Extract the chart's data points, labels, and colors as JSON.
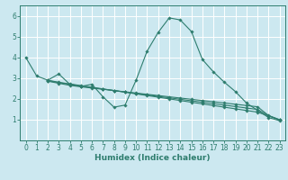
{
  "title": "",
  "xlabel": "Humidex (Indice chaleur)",
  "bg_color": "#cce8f0",
  "grid_color": "#ffffff",
  "line_color": "#2e7d6e",
  "xlim": [
    -0.5,
    23.5
  ],
  "ylim": [
    0,
    6.5
  ],
  "xticks": [
    0,
    1,
    2,
    3,
    4,
    5,
    6,
    7,
    8,
    9,
    10,
    11,
    12,
    13,
    14,
    15,
    16,
    17,
    18,
    19,
    20,
    21,
    22,
    23
  ],
  "yticks": [
    1,
    2,
    3,
    4,
    5,
    6
  ],
  "lines": [
    {
      "x": [
        0,
        1,
        2,
        3,
        4,
        5,
        6,
        7,
        8,
        9,
        10,
        11,
        12,
        13,
        14,
        15,
        16,
        17,
        18,
        19,
        20,
        21,
        22,
        23
      ],
      "y": [
        4.0,
        3.1,
        2.9,
        3.2,
        2.7,
        2.6,
        2.7,
        2.1,
        1.6,
        1.7,
        2.9,
        4.3,
        5.2,
        5.9,
        5.8,
        5.25,
        3.9,
        3.3,
        2.8,
        2.35,
        1.8,
        1.45,
        1.1,
        0.95
      ]
    },
    {
      "x": [
        2,
        3,
        4,
        5,
        6,
        7,
        8,
        9,
        10,
        11,
        12,
        13,
        14,
        15,
        16,
        17,
        18,
        19,
        20,
        21,
        22,
        23
      ],
      "y": [
        2.85,
        2.75,
        2.65,
        2.58,
        2.52,
        2.46,
        2.4,
        2.34,
        2.28,
        2.22,
        2.16,
        2.1,
        2.04,
        1.98,
        1.92,
        1.86,
        1.8,
        1.74,
        1.68,
        1.62,
        1.2,
        1.0
      ]
    },
    {
      "x": [
        2,
        3,
        4,
        5,
        6,
        7,
        8,
        9,
        10,
        11,
        12,
        13,
        14,
        15,
        16,
        17,
        18,
        19,
        20,
        21,
        22,
        23
      ],
      "y": [
        2.9,
        2.8,
        2.72,
        2.64,
        2.56,
        2.48,
        2.4,
        2.32,
        2.24,
        2.16,
        2.08,
        2.0,
        1.92,
        1.84,
        1.76,
        1.68,
        1.6,
        1.52,
        1.44,
        1.36,
        1.18,
        0.98
      ]
    },
    {
      "x": [
        2,
        3,
        4,
        5,
        6,
        7,
        8,
        9,
        10,
        11,
        12,
        13,
        14,
        15,
        16,
        17,
        18,
        19,
        20,
        21,
        22,
        23
      ],
      "y": [
        2.88,
        2.78,
        2.7,
        2.62,
        2.54,
        2.47,
        2.4,
        2.33,
        2.26,
        2.19,
        2.12,
        2.05,
        1.98,
        1.91,
        1.84,
        1.77,
        1.7,
        1.63,
        1.56,
        1.49,
        1.19,
        0.99
      ]
    }
  ]
}
